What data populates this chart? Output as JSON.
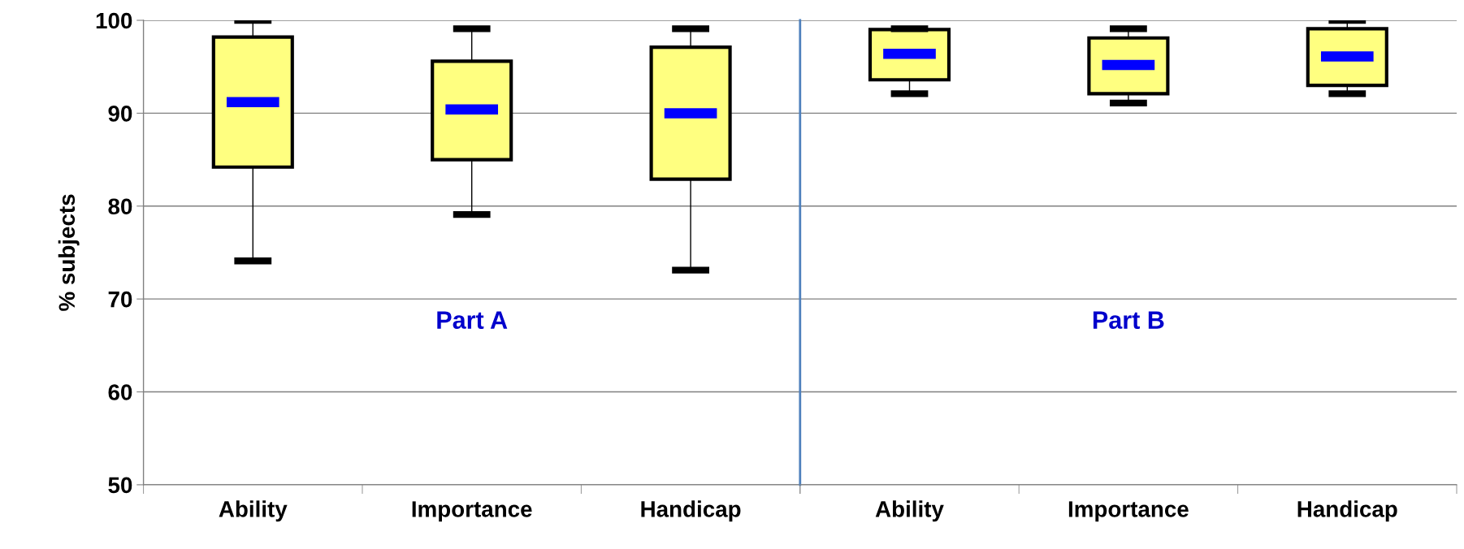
{
  "chart_data": [
    {
      "type": "box",
      "ylabel": "% subjects",
      "categories": [
        "Ability",
        "Importance",
        "Handicap"
      ],
      "ylim": [
        50,
        100
      ],
      "yticks": [
        50,
        60,
        70,
        80,
        90,
        100
      ],
      "grid": "y",
      "annotations": [
        "Part A"
      ],
      "boxes": [
        {
          "low": 74.1,
          "q1": 84.2,
          "median": 91.2,
          "q3": 98.2,
          "high": 100
        },
        {
          "low": 79.1,
          "q1": 85.0,
          "median": 90.4,
          "q3": 95.6,
          "high": 99.1
        },
        {
          "low": 73.1,
          "q1": 82.9,
          "median": 90.0,
          "q3": 97.1,
          "high": 99.1
        }
      ]
    },
    {
      "type": "box",
      "categories": [
        "Ability",
        "Importance",
        "Handicap"
      ],
      "ylim": [
        50,
        100
      ],
      "tick_labels": "x",
      "grid": "y",
      "annotations": [
        "Part B"
      ],
      "boxes": [
        {
          "low": 92.1,
          "q1": 93.6,
          "median": 96.4,
          "q3": 99.0,
          "high": 99.1
        },
        {
          "low": 91.1,
          "q1": 92.1,
          "median": 95.2,
          "q3": 98.1,
          "high": 99.1
        },
        {
          "low": 92.1,
          "q1": 93.0,
          "median": 96.1,
          "q3": 99.1,
          "high": 100
        }
      ]
    }
  ]
}
